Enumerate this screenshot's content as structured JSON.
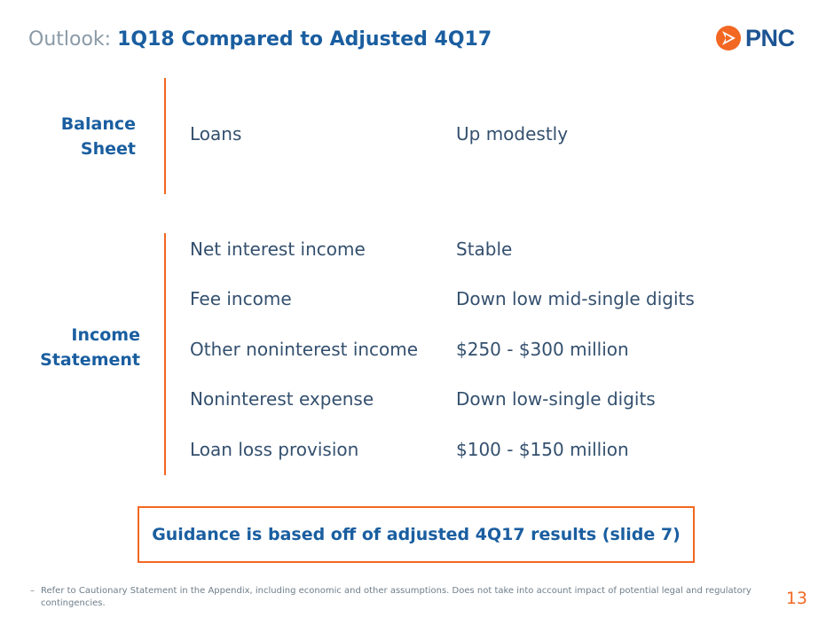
{
  "header": {
    "title_prefix": "Outlook:",
    "title_main": "1Q18 Compared to Adjusted 4Q17",
    "logo_text": "PNC",
    "brand_orange": "#f26722",
    "brand_blue": "#1a5ea0"
  },
  "balance_sheet": {
    "label": "Balance\nSheet",
    "rows": [
      {
        "item": "Loans",
        "value": "Up modestly"
      }
    ]
  },
  "income_statement": {
    "label": "Income\nStatement",
    "rows": [
      {
        "item": "Net interest income",
        "value": "Stable"
      },
      {
        "item": "Fee income",
        "value": "Down low mid-single digits"
      },
      {
        "item": "Other noninterest income",
        "value": "$250 - $300 million"
      },
      {
        "item": "Noninterest expense",
        "value": "Down low-single digits"
      },
      {
        "item": "Loan loss provision",
        "value": "$100 - $150 million"
      }
    ]
  },
  "guidance": "Guidance is based off of adjusted 4Q17 results (slide 7)",
  "footnote": {
    "bullet": "–",
    "text": "Refer to Cautionary Statement in the Appendix, including economic and other assumptions.  Does not take into account impact of potential legal and regulatory contingencies."
  },
  "page_number": "13"
}
